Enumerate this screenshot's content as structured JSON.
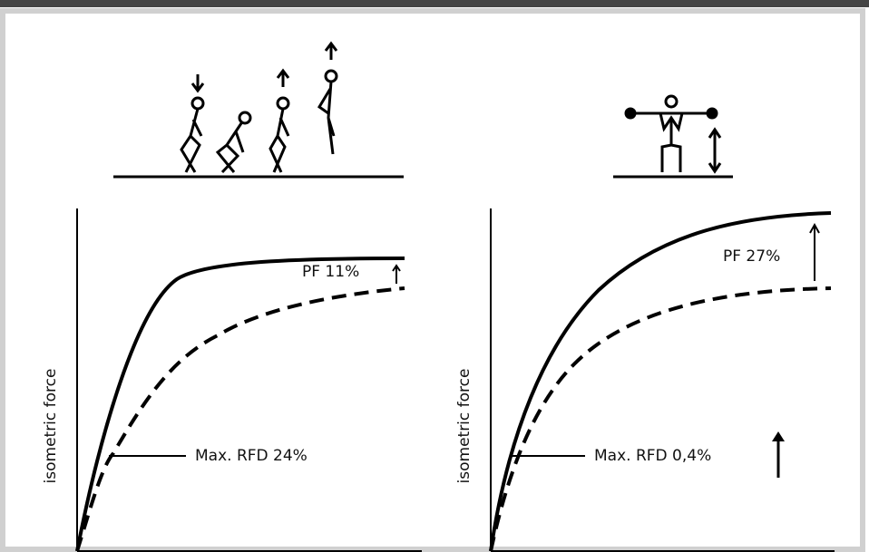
{
  "panels": [
    {
      "y_label": "isometric force",
      "pf_label": "PF 11%",
      "rfd_label": "Max. RFD 24%"
    },
    {
      "y_label": "isometric force",
      "pf_label": "PF 27%",
      "rfd_label": "Max. RFD 0,4%"
    }
  ]
}
